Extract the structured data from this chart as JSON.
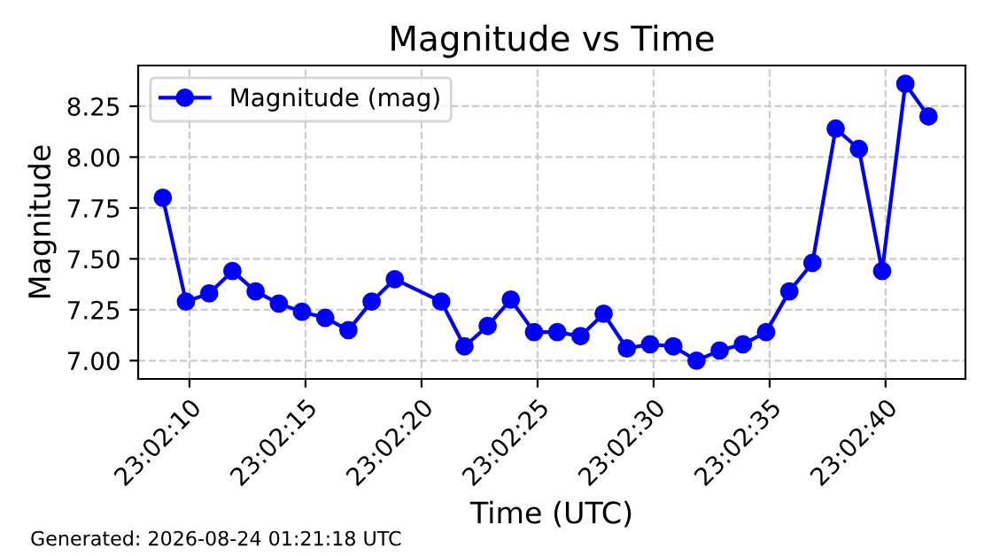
{
  "chart_data": {
    "type": "line",
    "title": "Magnitude vs Time",
    "xlabel": "Time (UTC)",
    "ylabel": "Magnitude",
    "x": [
      23.035792,
      23.036069,
      23.036347,
      23.036625,
      23.036903,
      23.037181,
      23.037458,
      23.037736,
      23.038014,
      23.038292,
      23.038569,
      23.039125,
      23.039403,
      23.039681,
      23.039958,
      23.040236,
      23.040514,
      23.040792,
      23.041069,
      23.041347,
      23.041625,
      23.041903,
      23.042181,
      23.042458,
      23.042736,
      23.043014,
      23.043292,
      23.043569,
      23.043847,
      23.044125,
      23.044403,
      23.044681,
      23.044958
    ],
    "series": [
      {
        "name": "Magnitude (mag)",
        "color": "#0000ff",
        "values": [
          7.8,
          7.29,
          7.33,
          7.44,
          7.34,
          7.28,
          7.24,
          7.21,
          7.15,
          7.29,
          7.4,
          7.29,
          7.07,
          7.17,
          7.3,
          7.14,
          7.14,
          7.12,
          7.23,
          7.06,
          7.08,
          7.07,
          7.0,
          7.05,
          7.08,
          7.14,
          7.34,
          7.48,
          8.14,
          8.04,
          7.44,
          8.36,
          8.2
        ]
      }
    ],
    "xlim": [
      23.035497,
      23.0454
    ],
    "xticks": [
      {
        "value": 23.036111,
        "label": "23:02:10"
      },
      {
        "value": 23.0375,
        "label": "23:02:15"
      },
      {
        "value": 23.038889,
        "label": "23:02:20"
      },
      {
        "value": 23.040278,
        "label": "23:02:25"
      },
      {
        "value": 23.041667,
        "label": "23:02:30"
      },
      {
        "value": 23.043056,
        "label": "23:02:35"
      },
      {
        "value": 23.044444,
        "label": "23:02:40"
      }
    ],
    "ylim": [
      6.91,
      8.45
    ],
    "yticks": [
      {
        "value": 7.0,
        "label": "7.00"
      },
      {
        "value": 7.25,
        "label": "7.25"
      },
      {
        "value": 7.5,
        "label": "7.50"
      },
      {
        "value": 7.75,
        "label": "7.75"
      },
      {
        "value": 8.0,
        "label": "8.00"
      },
      {
        "value": 8.25,
        "label": "8.25"
      }
    ],
    "grid": true,
    "legend": "top left",
    "marker": "circle",
    "line_style": "solid",
    "annotations": [
      "Generated: 2026-08-24 01:21:18 UTC"
    ]
  }
}
